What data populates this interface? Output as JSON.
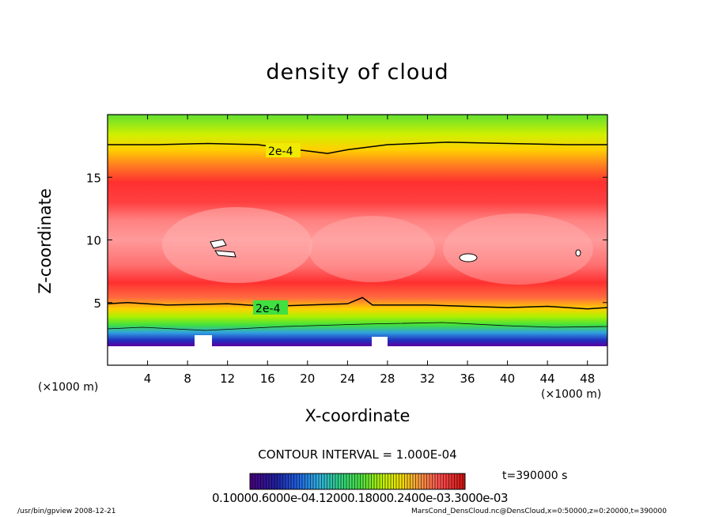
{
  "chart_data": {
    "type": "heatmap",
    "title": "density of cloud",
    "xlabel": "X-coordinate",
    "ylabel": "Z-coordinate",
    "x_unit": "(×1000 m)",
    "y_unit": "(×1000 m)",
    "xlim": [
      0,
      50
    ],
    "ylim": [
      0,
      20
    ],
    "x_ticks": [
      4,
      8,
      12,
      16,
      20,
      24,
      28,
      32,
      36,
      40,
      44,
      48
    ],
    "y_ticks": [
      5,
      10,
      15
    ],
    "contour_label": "2e-4",
    "contour_levels": [
      0.0002
    ],
    "contour_top_z": [
      [
        0,
        17.6
      ],
      [
        5,
        17.6
      ],
      [
        10,
        17.7
      ],
      [
        15,
        17.6
      ],
      [
        19,
        17.2
      ],
      [
        22,
        16.9
      ],
      [
        24,
        17.2
      ],
      [
        28,
        17.6
      ],
      [
        34,
        17.8
      ],
      [
        40,
        17.7
      ],
      [
        46,
        17.6
      ],
      [
        50,
        17.6
      ]
    ],
    "contour_bottom_z": [
      [
        0,
        4.9
      ],
      [
        2,
        5.0
      ],
      [
        6,
        4.8
      ],
      [
        12,
        4.9
      ],
      [
        16,
        4.7
      ],
      [
        20,
        4.8
      ],
      [
        24,
        4.9
      ],
      [
        25.5,
        5.4
      ],
      [
        26.5,
        4.8
      ],
      [
        32,
        4.8
      ],
      [
        36,
        4.7
      ],
      [
        40,
        4.6
      ],
      [
        44,
        4.7
      ],
      [
        48,
        4.5
      ],
      [
        50,
        4.6
      ]
    ],
    "contour_interval": "CONTOUR INTERVAL = 1.000E-04",
    "time_label": "t=390000 s",
    "colorbar_labels": [
      "0.1000E-06",
      "0.6000E-04",
      "0.1200E-03",
      "0.1800E-03",
      "0.2400E-03",
      "0.3000E-03"
    ],
    "colorbar_labels_text": "0.10000.6000e-04.12000.18000.2400e-03.3000e-03",
    "colorbar_colors": [
      "#4b0082",
      "#2020a0",
      "#2050e0",
      "#2aa0e0",
      "#30d0a0",
      "#40e040",
      "#a0f000",
      "#f0f000",
      "#f8c000",
      "#ff8040",
      "#ff4040",
      "#ff2020",
      "#e01010"
    ],
    "footer_left": "/usr/bin/gpview   2008-12-21",
    "footer_right": "MarsCond_DensCloud.nc@DensCloud,x=0:50000,z=0:20000,t=390000"
  }
}
